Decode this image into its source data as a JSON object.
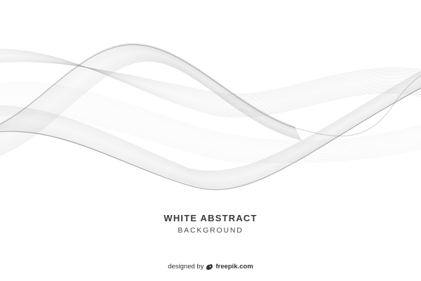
{
  "artwork": {
    "title": "WHITE ABSTRACT",
    "subtitle": "BACKGROUND",
    "wave_color": "#9a9a9a",
    "background_color": "#ffffff"
  },
  "credit": {
    "prefix": "designed by",
    "icon": "freepik-logo-icon",
    "brand": "freepik.com"
  }
}
